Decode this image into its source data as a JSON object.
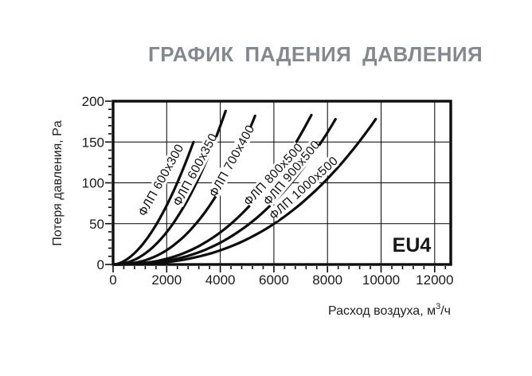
{
  "title": "ГРАФИК ПАДЕНИЯ ДАВЛЕНИЯ",
  "chart_data": {
    "type": "line",
    "title": "ГРАФИК ПАДЕНИЯ ДАВЛЕНИЯ",
    "xlabel": "Расход воздуха, м³/ч",
    "ylabel": "Потеря давления, Pa",
    "xlim": [
      0,
      12600
    ],
    "ylim": [
      0,
      200
    ],
    "x_ticks": [
      0,
      2000,
      4000,
      6000,
      8000,
      10000,
      12000
    ],
    "y_ticks": [
      0,
      50,
      100,
      150,
      200
    ],
    "x_minor_step": 400,
    "y_minor_step": 10,
    "grid": true,
    "annotation": "EU4",
    "line_color": "#0d0d0d",
    "grid_color": "#000000",
    "title_color": "#84898f",
    "series": [
      {
        "name": "ФЛП 600x300",
        "max_flow": 3000,
        "max_pressure": 150,
        "exponent": 1.8,
        "points": [
          [
            0,
            0
          ],
          [
            1000,
            21
          ],
          [
            2000,
            72
          ],
          [
            3000,
            150
          ]
        ]
      },
      {
        "name": "ФЛП 600x350",
        "max_flow": 4200,
        "max_pressure": 188,
        "exponent": 2.1,
        "points": [
          [
            0,
            0
          ],
          [
            1000,
            9
          ],
          [
            2000,
            40
          ],
          [
            3000,
            93
          ],
          [
            4200,
            188
          ]
        ]
      },
      {
        "name": "ФЛП 700x400",
        "max_flow": 5300,
        "max_pressure": 182,
        "exponent": 2.4,
        "points": [
          [
            0,
            0
          ],
          [
            2000,
            18
          ],
          [
            4000,
            93
          ],
          [
            5300,
            182
          ]
        ]
      },
      {
        "name": "ФЛП 800x500",
        "max_flow": 7400,
        "max_pressure": 183,
        "exponent": 2.5,
        "points": [
          [
            0,
            0
          ],
          [
            2000,
            7
          ],
          [
            4000,
            39
          ],
          [
            6000,
            108
          ],
          [
            7400,
            183
          ]
        ]
      },
      {
        "name": "ФЛП 900x500",
        "max_flow": 8300,
        "max_pressure": 178,
        "exponent": 2.6,
        "points": [
          [
            0,
            0
          ],
          [
            2000,
            4
          ],
          [
            4000,
            27
          ],
          [
            6000,
            77
          ],
          [
            8000,
            162
          ],
          [
            8300,
            178
          ]
        ]
      },
      {
        "name": "ФЛП 1000x500",
        "max_flow": 9800,
        "max_pressure": 178,
        "exponent": 2.6,
        "points": [
          [
            0,
            0
          ],
          [
            2000,
            3
          ],
          [
            4000,
            17
          ],
          [
            6000,
            50
          ],
          [
            8000,
            105
          ],
          [
            9800,
            178
          ]
        ]
      }
    ]
  }
}
